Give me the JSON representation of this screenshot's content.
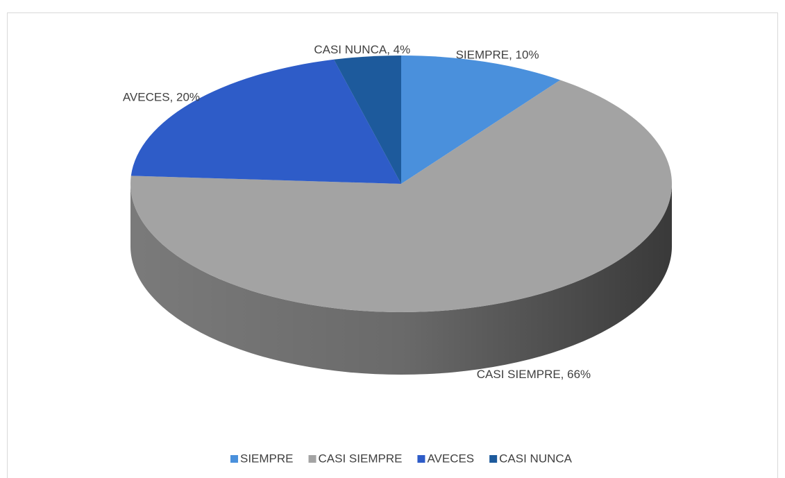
{
  "chart_data": {
    "type": "pie",
    "categories": [
      "SIEMPRE",
      "CASI SIEMPRE",
      "AVECES",
      "CASI NUNCA"
    ],
    "values": [
      10,
      66,
      20,
      4
    ],
    "value_labels": [
      "SIEMPRE, 10%",
      "CASI SIEMPRE, 66%",
      "AVECES, 20%",
      "CASI NUNCA, 4%"
    ],
    "colors": [
      "#4a90dc",
      "#a3a3a3",
      "#2e5cc8",
      "#1d5a9c"
    ],
    "legend": "bottom"
  }
}
